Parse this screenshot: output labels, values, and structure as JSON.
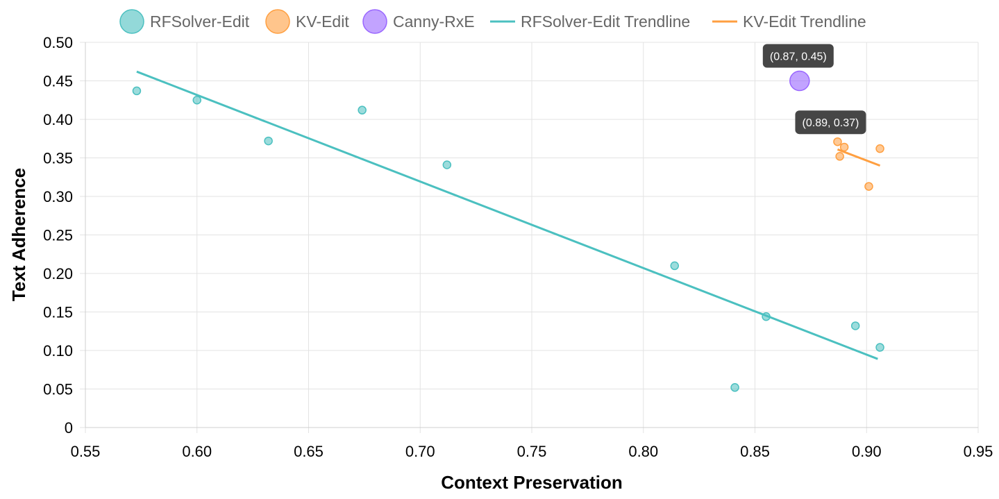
{
  "chart_data": {
    "type": "scatter",
    "xlabel": "Context Preservation",
    "ylabel": "Text Adherence",
    "xlim": [
      0.55,
      0.95
    ],
    "ylim": [
      0,
      0.5
    ],
    "x_ticks": [
      "0.55",
      "0.60",
      "0.65",
      "0.70",
      "0.75",
      "0.80",
      "0.85",
      "0.90",
      "0.95"
    ],
    "y_ticks": [
      "0",
      "0.05",
      "0.10",
      "0.15",
      "0.20",
      "0.25",
      "0.30",
      "0.35",
      "0.40",
      "0.45",
      "0.50"
    ],
    "grid": true,
    "legend_position": "top",
    "legend": [
      "RFSolver-Edit",
      "KV-Edit",
      "Canny-RxE",
      "RFSolver-Edit Trendline",
      "KV-Edit Trendline"
    ],
    "series": [
      {
        "name": "RFSolver-Edit",
        "kind": "points",
        "color": "#4bc0c0",
        "points": [
          [
            0.573,
            0.437
          ],
          [
            0.6,
            0.425
          ],
          [
            0.632,
            0.372
          ],
          [
            0.674,
            0.412
          ],
          [
            0.712,
            0.341
          ],
          [
            0.814,
            0.21
          ],
          [
            0.841,
            0.052
          ],
          [
            0.855,
            0.144
          ],
          [
            0.895,
            0.132
          ],
          [
            0.906,
            0.104
          ]
        ]
      },
      {
        "name": "KV-Edit",
        "kind": "points",
        "color": "#ff9f40",
        "points": [
          [
            0.887,
            0.371
          ],
          [
            0.888,
            0.352
          ],
          [
            0.89,
            0.364
          ],
          [
            0.901,
            0.313
          ],
          [
            0.906,
            0.362
          ]
        ]
      },
      {
        "name": "Canny-RxE",
        "kind": "points",
        "color": "#9966ff",
        "points": [
          [
            0.87,
            0.45
          ]
        ]
      },
      {
        "name": "RFSolver-Edit Trendline",
        "kind": "line",
        "color": "#4bc0c0",
        "points": [
          [
            0.573,
            0.462
          ],
          [
            0.905,
            0.089
          ]
        ]
      },
      {
        "name": "KV-Edit Trendline",
        "kind": "line",
        "color": "#ff9f40",
        "points": [
          [
            0.887,
            0.361
          ],
          [
            0.906,
            0.34
          ]
        ]
      }
    ],
    "annotations": [
      {
        "text": "(0.87, 0.45)",
        "x": 0.87,
        "y": 0.45
      },
      {
        "text": "(0.89, 0.37)",
        "x": 0.887,
        "y": 0.371
      }
    ]
  }
}
